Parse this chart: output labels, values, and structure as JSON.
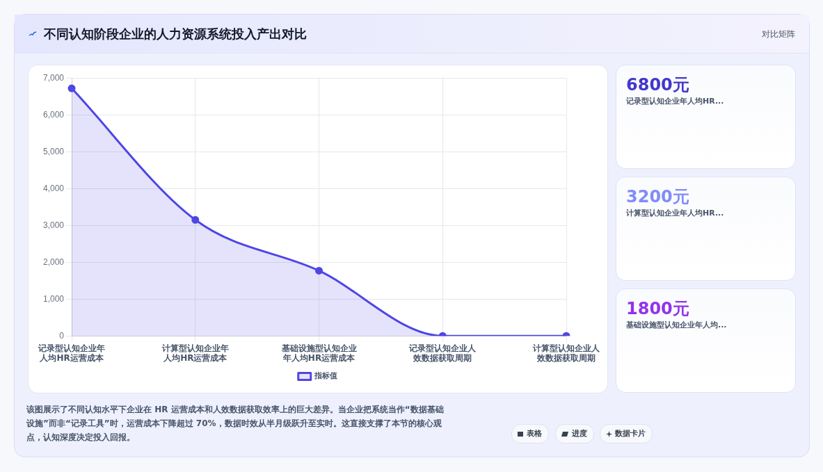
{
  "chart_data": [
    {
      "type": "area",
      "title": "不同认知阶段企业的人力资源系统投入产出对比",
      "categories": [
        "记录型认知企业年人均HR运营成本",
        "计算型认知企业年人均HR运营成本",
        "基础设施型认知企业年人均HR运营成本",
        "记录型认知企业人效数据获取周期",
        "计算型认知企业人效数据获取周期"
      ],
      "series": [
        {
          "name": "指标值",
          "color": "#4f46e5",
          "values": [
            6720,
            3150,
            1770,
            0,
            0
          ]
        }
      ],
      "ylim": [
        0,
        7000
      ],
      "yticks": [
        {
          "value": 0,
          "label": "0"
        },
        {
          "value": 1000,
          "label": "1,000"
        },
        {
          "value": 2000,
          "label": "2,000"
        },
        {
          "value": 3000,
          "label": "3,000"
        },
        {
          "value": 4000,
          "label": "4,000"
        },
        {
          "value": 5000,
          "label": "5,000"
        },
        {
          "value": 6000,
          "label": "6,000"
        },
        {
          "value": 7000,
          "label": "7,000"
        }
      ],
      "grid": true,
      "legend": "bottom",
      "marker": "circle",
      "annotations": [
        "该图展示了不同认知水平下企业在 HR 运营成本和人效数据获取效率上的巨大差异。当企业把系统当作“数据基础设施”而非“记录工具”时，运营成本下降超过 70%，数据时效从半月级跃升至实时。这直接支撑了本节的核心观点，认知深度决定投入回报。",
        "表格",
        "进度",
        "数据卡片"
      ]
    },
    {
      "type": "other",
      "annotations": [
        "对比矩阵",
        "6800元",
        "记录型认知企业年人均HR...",
        "3200元",
        "计算型认知企业年人均HR...",
        "1800元",
        "基础设施型认知企业年人均..."
      ]
    }
  ]
}
